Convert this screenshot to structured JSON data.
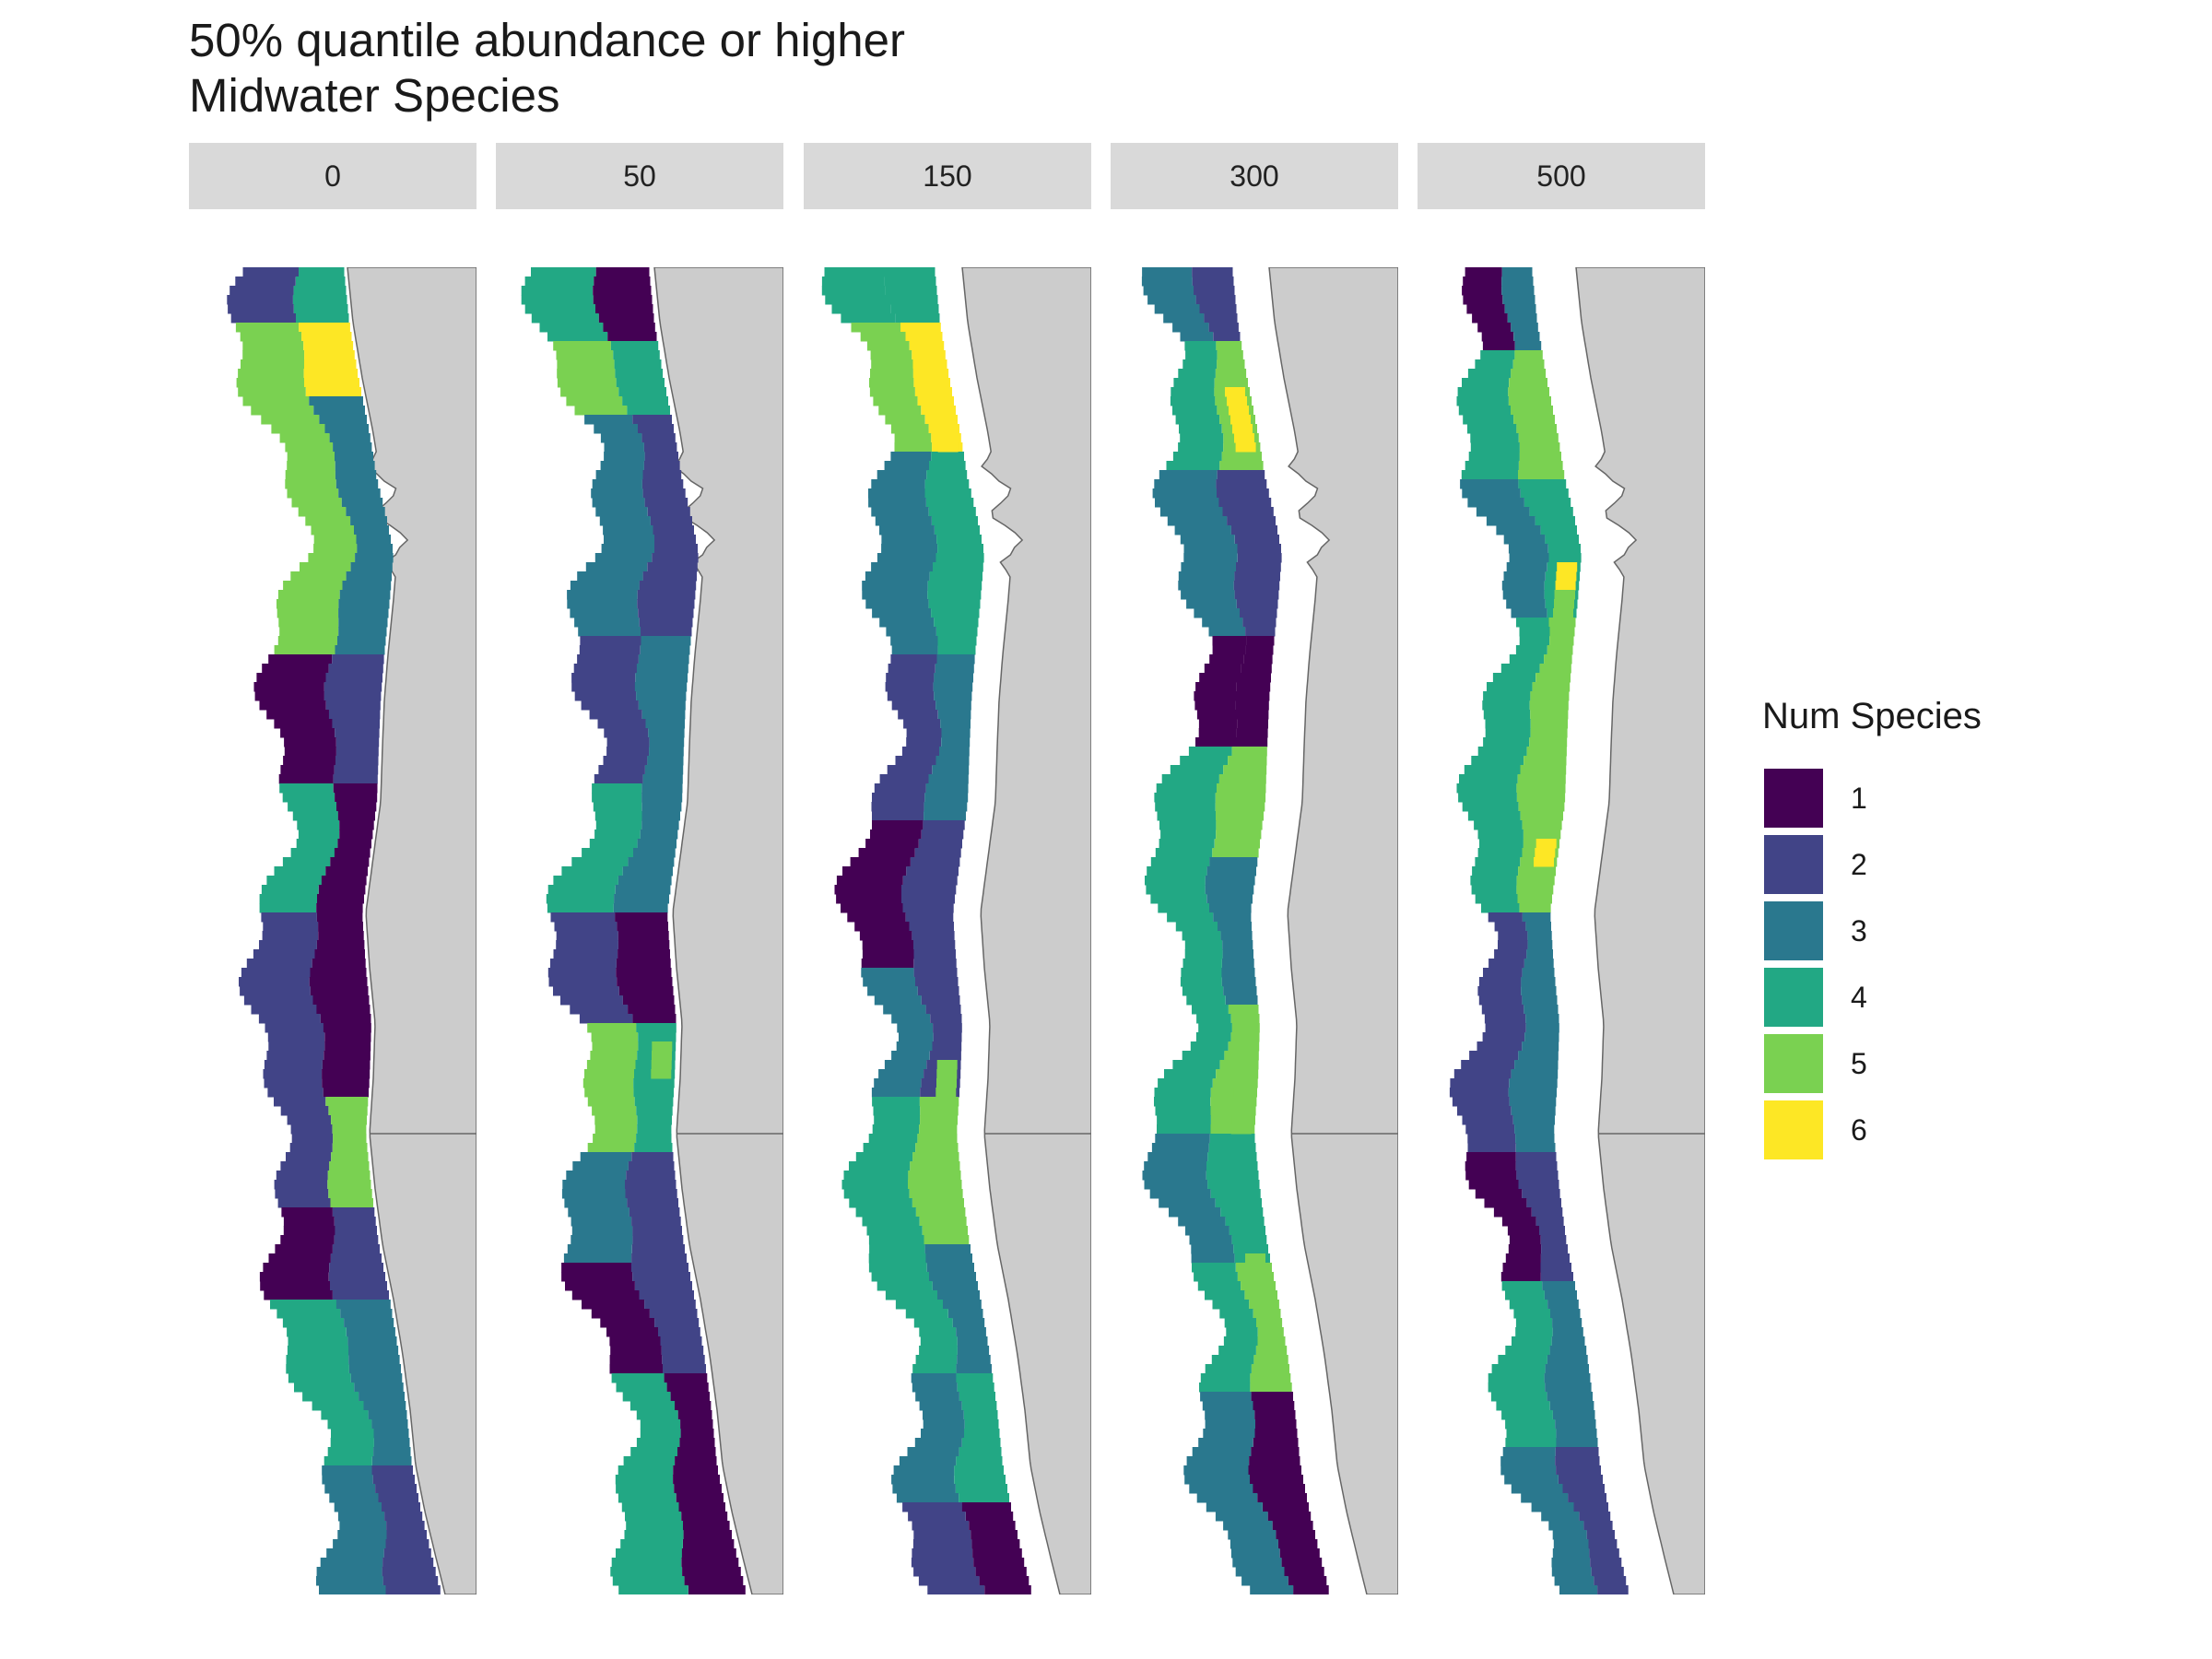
{
  "title": {
    "line1": "50% quantile abundance or higher",
    "line2": "Midwater Species"
  },
  "facets": [
    "0",
    "50",
    "150",
    "300",
    "500"
  ],
  "legend": {
    "title": "Num Species",
    "items": [
      {
        "label": "1",
        "color": "#440154"
      },
      {
        "label": "2",
        "color": "#414487"
      },
      {
        "label": "3",
        "color": "#2a788e"
      },
      {
        "label": "4",
        "color": "#22a884"
      },
      {
        "label": "5",
        "color": "#7ad151"
      },
      {
        "label": "6",
        "color": "#fde725"
      }
    ]
  },
  "map": {
    "land_color": "#cccccc",
    "coast_color": "#666666",
    "background": "#ffffff"
  }
}
